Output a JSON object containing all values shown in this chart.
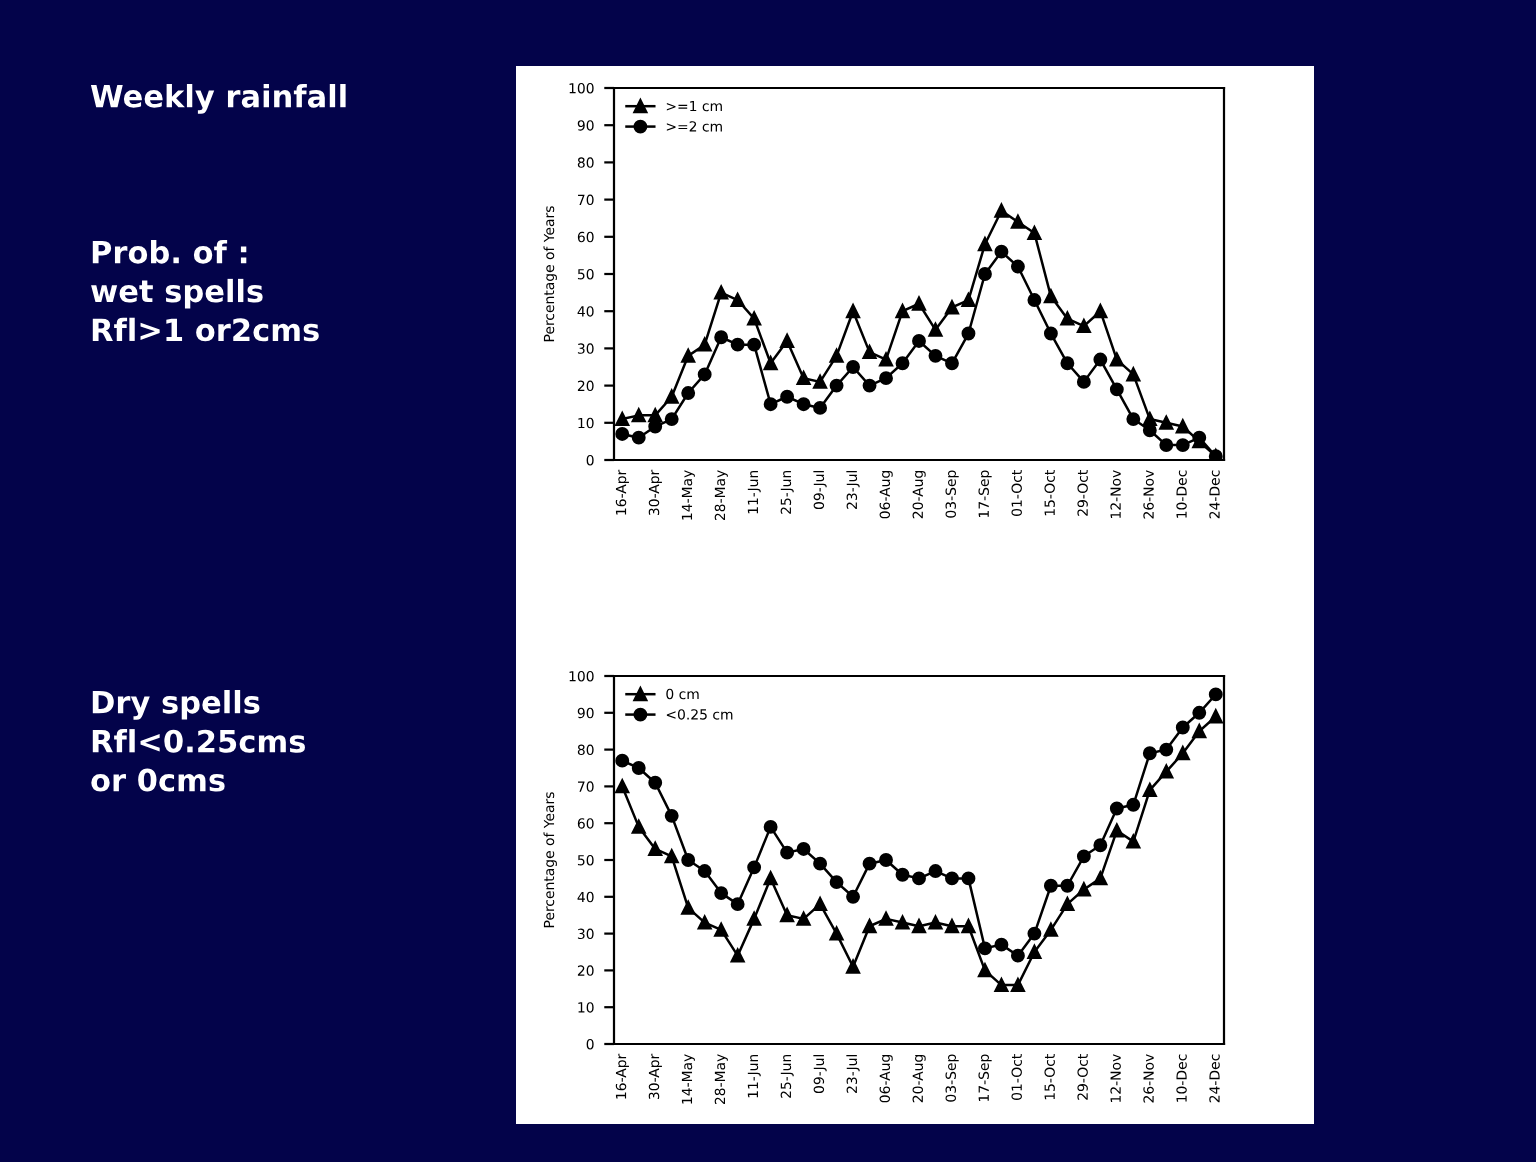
{
  "chart_data": [
    {
      "type": "line",
      "ylabel": "Percentage of Years",
      "annotations": [
        "Weekly rainfall",
        "Prob. of :\nwet spells\nRfl>1 or2cms"
      ],
      "categories": [
        "16-Apr",
        null,
        "30-Apr",
        null,
        "14-May",
        null,
        "28-May",
        null,
        "11-Jun",
        null,
        "25-Jun",
        null,
        "09-Jul",
        null,
        "23-Jul",
        null,
        "06-Aug",
        null,
        "20-Aug",
        null,
        "03-Sep",
        null,
        "17-Sep",
        null,
        "01-Oct",
        null,
        "15-Oct",
        null,
        "29-Oct",
        null,
        "12-Nov",
        null,
        "26-Nov",
        null,
        "10-Dec",
        null,
        "24-Dec"
      ],
      "series": [
        {
          "name": ">=1 cm",
          "color": "#000000",
          "marker": "triangle",
          "values": [
            11,
            12,
            12,
            17,
            28,
            31,
            45,
            43,
            38,
            26,
            32,
            22,
            21,
            28,
            40,
            29,
            27,
            40,
            42,
            35,
            41,
            43,
            58,
            67,
            64,
            61,
            44,
            38,
            36,
            40,
            27,
            23,
            11,
            10,
            9,
            5,
            1
          ]
        },
        {
          "name": ">=2 cm",
          "color": "#000000",
          "marker": "circle",
          "values": [
            7,
            6,
            9,
            11,
            18,
            23,
            33,
            31,
            31,
            15,
            17,
            15,
            14,
            20,
            25,
            20,
            22,
            26,
            32,
            28,
            26,
            34,
            50,
            56,
            52,
            43,
            34,
            26,
            21,
            27,
            19,
            11,
            8,
            4,
            4,
            6,
            1
          ]
        }
      ],
      "ylim": [
        0,
        100
      ],
      "yticks": [
        0,
        10,
        20,
        30,
        40,
        50,
        60,
        70,
        80,
        90,
        100
      ],
      "legend": "top left",
      "grid": false,
      "line_style": "solid"
    },
    {
      "type": "line",
      "ylabel": "Percentage of Years",
      "annotations": [
        "Dry spells\nRfl<0.25cms\nor 0cms"
      ],
      "categories": [
        "16-Apr",
        null,
        "30-Apr",
        null,
        "14-May",
        null,
        "28-May",
        null,
        "11-Jun",
        null,
        "25-Jun",
        null,
        "09-Jul",
        null,
        "23-Jul",
        null,
        "06-Aug",
        null,
        "20-Aug",
        null,
        "03-Sep",
        null,
        "17-Sep",
        null,
        "01-Oct",
        null,
        "15-Oct",
        null,
        "29-Oct",
        null,
        "12-Nov",
        null,
        "26-Nov",
        null,
        "10-Dec",
        null,
        "24-Dec"
      ],
      "series": [
        {
          "name": "0 cm",
          "color": "#000000",
          "marker": "triangle",
          "values": [
            70,
            59,
            53,
            51,
            37,
            33,
            31,
            24,
            34,
            45,
            35,
            34,
            38,
            30,
            21,
            32,
            34,
            33,
            32,
            33,
            32,
            32,
            20,
            16,
            16,
            25,
            31,
            38,
            42,
            45,
            58,
            55,
            69,
            74,
            79,
            85,
            89
          ]
        },
        {
          "name": "<0.25 cm",
          "color": "#000000",
          "marker": "circle",
          "values": [
            77,
            75,
            71,
            62,
            50,
            47,
            41,
            38,
            48,
            59,
            52,
            53,
            49,
            44,
            40,
            49,
            50,
            46,
            45,
            47,
            45,
            45,
            26,
            27,
            24,
            30,
            43,
            43,
            51,
            54,
            64,
            65,
            79,
            80,
            86,
            90,
            95
          ]
        }
      ],
      "ylim": [
        0,
        100
      ],
      "yticks": [
        0,
        10,
        20,
        30,
        40,
        50,
        60,
        70,
        80,
        90,
        100
      ],
      "legend": "top left",
      "grid": false,
      "line_style": "solid"
    }
  ]
}
